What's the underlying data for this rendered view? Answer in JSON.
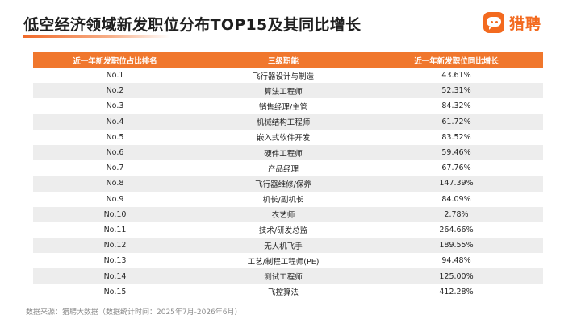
{
  "title": "低空经济领域新发职位分布TOP15及其同比增长",
  "logo": {
    "name": "猎聘",
    "icon": "liepin-logo-icon",
    "color": "#f36a1f"
  },
  "table": {
    "header_color": "#f0772d",
    "columns": [
      "近一年新发职位占比排名",
      "三级职能",
      "近一年新发职位同比增长"
    ],
    "rows": [
      {
        "rank": "No.1",
        "function": "飞行器设计与制造",
        "growth": "43.61%"
      },
      {
        "rank": "No.2",
        "function": "算法工程师",
        "growth": "52.31%"
      },
      {
        "rank": "No.3",
        "function": "销售经理/主管",
        "growth": "84.32%"
      },
      {
        "rank": "No.4",
        "function": "机械结构工程师",
        "growth": "61.72%"
      },
      {
        "rank": "No.5",
        "function": "嵌入式软件开发",
        "growth": "83.52%"
      },
      {
        "rank": "No.6",
        "function": "硬件工程师",
        "growth": "59.46%"
      },
      {
        "rank": "No.7",
        "function": "产品经理",
        "growth": "67.76%"
      },
      {
        "rank": "No.8",
        "function": "飞行器维修/保养",
        "growth": "147.39%"
      },
      {
        "rank": "No.9",
        "function": "机长/副机长",
        "growth": "84.09%"
      },
      {
        "rank": "No.10",
        "function": "农艺师",
        "growth": "2.78%"
      },
      {
        "rank": "No.11",
        "function": "技术/研发总监",
        "growth": "264.66%"
      },
      {
        "rank": "No.12",
        "function": "无人机飞手",
        "growth": "189.55%"
      },
      {
        "rank": "No.13",
        "function": "工艺/制程工程师(PE)",
        "growth": "94.48%"
      },
      {
        "rank": "No.14",
        "function": "测试工程师",
        "growth": "125.00%"
      },
      {
        "rank": "No.15",
        "function": "飞控算法",
        "growth": "412.28%"
      }
    ]
  },
  "source": "数据来源：猎聘大数据（数据统计时间：2025年7月-2026年6月）"
}
